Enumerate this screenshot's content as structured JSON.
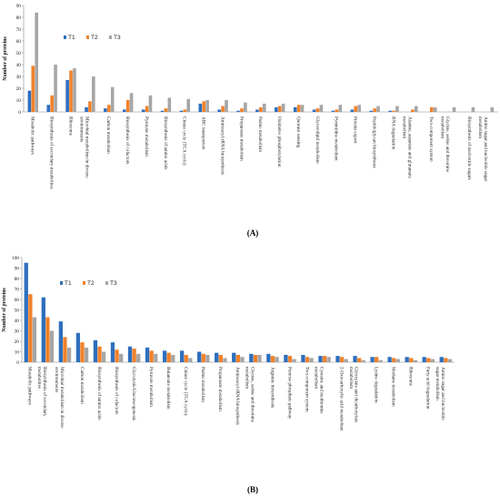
{
  "colors": {
    "T1": "#2e6fbd",
    "T2": "#f0822b",
    "T3": "#a6a6a6"
  },
  "chart_data": [
    {
      "type": "bar",
      "panel_label": "(A)",
      "ylabel": "Number of proteins",
      "ylim": [
        0,
        90
      ],
      "yticks": [
        0,
        10,
        20,
        30,
        40,
        50,
        60,
        70,
        80,
        90
      ],
      "legend_position": "top-left",
      "categories": [
        "Metabolic pathways",
        "Biosynthesis of secondary metabolites",
        "Ribosome",
        "Microbial metabolism in diverse environments",
        "Carbon metabolism",
        "Biosynthesis of cofactors",
        "Pyruvate metabolism",
        "Biosynthesis of amino acids",
        "Citrate cycle (TCA cycle)",
        "ABC transporters",
        "Aminoacyl-tRNA biosynthesis",
        "Propanoate metabolism",
        "Purine metabolism",
        "Oxidative phosphorylation",
        "Quorum sensing",
        "Glycerolipid metabolism",
        "Pyrimidine metabolism",
        "Protein export",
        "Peptidoglycan biosynthesis",
        "RNA degradation",
        "Alanine, aspartate and glutamate metabolism",
        "Two-component system",
        "Glycine, serine and threonine metabolism",
        "Biosynthesis of nucleotide sugars",
        "Amino sugar and nucleotide sugar metabolism"
      ],
      "series": [
        {
          "name": "T1",
          "values": [
            18,
            6,
            27,
            4,
            3,
            2,
            2,
            1,
            1,
            7,
            2,
            1,
            2,
            4,
            4,
            2,
            1,
            2,
            1,
            1,
            0,
            0,
            0,
            0,
            0
          ]
        },
        {
          "name": "T2",
          "values": [
            39,
            14,
            35,
            9,
            6,
            10,
            5,
            3,
            2,
            9,
            5,
            3,
            4,
            5,
            6,
            3,
            2,
            5,
            3,
            1,
            2,
            4,
            0,
            0,
            0
          ]
        },
        {
          "name": "T3",
          "values": [
            84,
            40,
            37,
            30,
            21,
            16,
            14,
            12,
            11,
            10,
            10,
            8,
            7,
            7,
            6,
            6,
            6,
            6,
            5,
            5,
            5,
            4,
            4,
            4,
            4
          ]
        }
      ]
    },
    {
      "type": "bar",
      "panel_label": "(B)",
      "ylabel": "Number of proteins",
      "ylim": [
        0,
        100
      ],
      "yticks": [
        0,
        10,
        20,
        30,
        40,
        50,
        60,
        70,
        80,
        90,
        100
      ],
      "legend_position": "top-left",
      "categories": [
        "Metabolic pathways",
        "Biosynthesis of secondary metabolites",
        "Microbial metabolism in diverse environments",
        "Carbon metabolism",
        "Biosynthesis of amino acids",
        "Biosynthesis of cofactors",
        "Glycolysis/Gluconeogenesis",
        "Pyruvate metabolism",
        "Butanoate metabolism",
        "Citrate cycle (TCA cycle)",
        "Purine metabolism",
        "Propanoate metabolism",
        "Aminoacyl-tRNA biosynthesis",
        "Glycine, serine and threonine metabolism",
        "Arginine biosynthesis",
        "Pentose phosphate pathway",
        "Two-component system",
        "Cysteine and methionine metabolism",
        "2-Oxocarboxylic acid metabolism",
        "Glyoxylate and dicarboxylate metabolism",
        "Lysine degradation",
        "Methane metabolism",
        "Ribosome",
        "Fatty acid degradation",
        "Amino sugar and nucleotide sugar metabolism"
      ],
      "series": [
        {
          "name": "T1",
          "values": [
            95,
            62,
            39,
            28,
            21,
            19,
            15,
            14,
            11,
            11,
            10,
            9,
            9,
            8,
            8,
            7,
            7,
            6,
            6,
            6,
            5,
            5,
            5,
            5,
            5
          ]
        },
        {
          "name": "T2",
          "values": [
            65,
            43,
            24,
            19,
            15,
            12,
            13,
            11,
            9,
            7,
            8,
            7,
            7,
            7,
            6,
            6,
            5,
            6,
            5,
            4,
            5,
            4,
            4,
            4,
            4
          ]
        },
        {
          "name": "T3",
          "values": [
            43,
            30,
            14,
            14,
            10,
            8,
            8,
            8,
            7,
            4,
            7,
            4,
            5,
            7,
            5,
            3,
            4,
            5,
            3,
            2,
            2,
            3,
            2,
            3,
            3
          ]
        }
      ]
    }
  ]
}
